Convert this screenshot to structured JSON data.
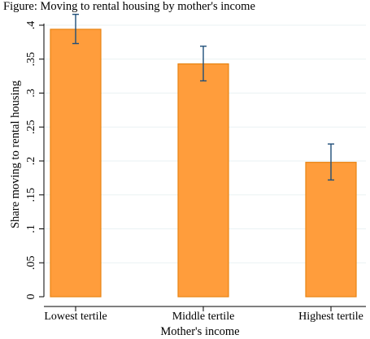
{
  "top_text": "Figure: Moving to rental housing by mother's income",
  "chart_data": {
    "type": "bar",
    "categories": [
      "Lowest tertile",
      "Middle tertile",
      "Highest tertile"
    ],
    "values": [
      0.394,
      0.343,
      0.198
    ],
    "error_low": [
      0.373,
      0.318,
      0.172
    ],
    "error_high": [
      0.416,
      0.369,
      0.225
    ],
    "xlabel": "Mother's income",
    "ylabel": "Share moving to rental housing",
    "ylim": [
      0,
      0.4
    ],
    "yticks": [
      0,
      0.05,
      0.1,
      0.15,
      0.2,
      0.25,
      0.3,
      0.35,
      0.4
    ],
    "ytick_labels": [
      "0",
      ".05",
      ".1",
      ".15",
      ".2",
      ".25",
      ".3",
      ".35",
      ".4"
    ],
    "grid": true,
    "legend": false,
    "colors": {
      "bar_fill": "#FF9D3C",
      "bar_edge": "#E88413",
      "error_bar": "#1F4E79",
      "grid": "#EAF2F3"
    }
  }
}
